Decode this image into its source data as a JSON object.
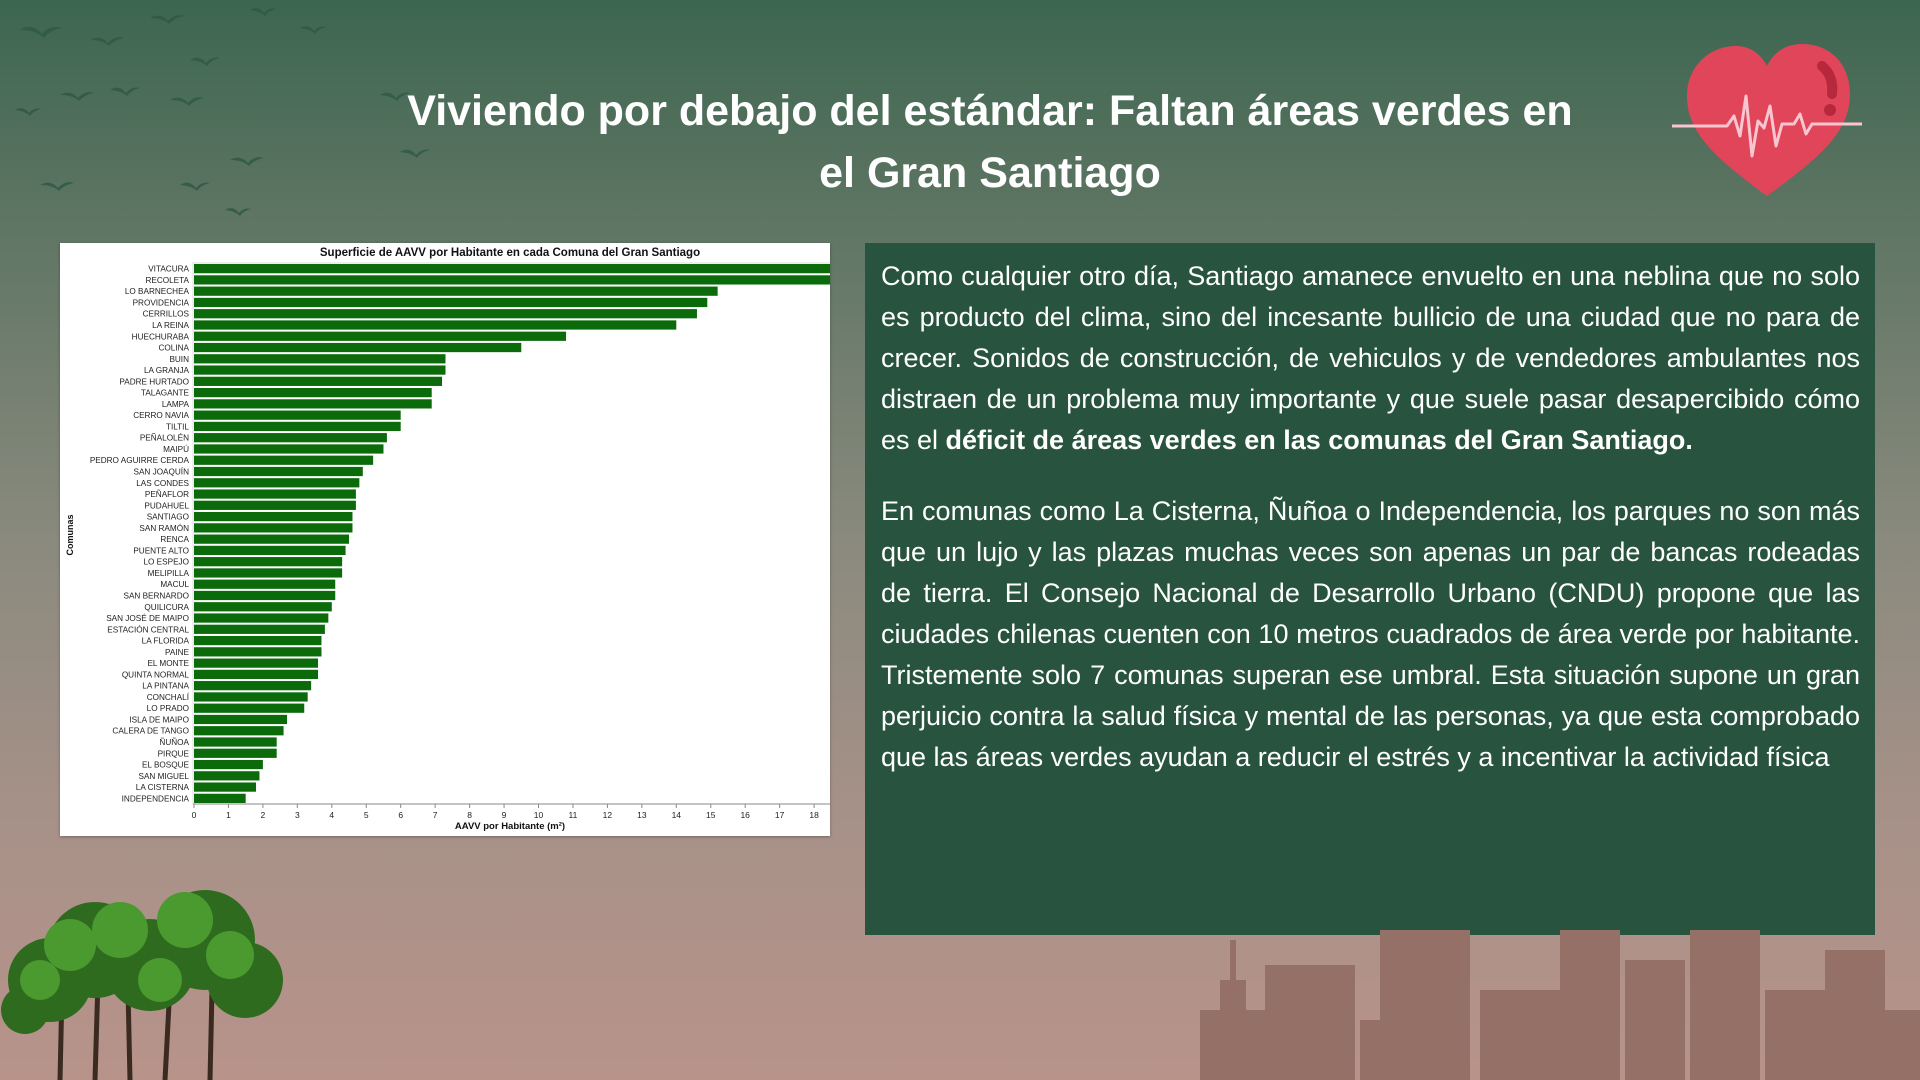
{
  "page": {
    "title_line1": "Viviendo por debajo del estándar: Faltan áreas verdes en",
    "title_line2": "el Gran Santiago"
  },
  "article": {
    "p1_text": "Como cualquier otro día, Santiago amanece envuelto en una neblina que no solo es producto del clima, sino del incesante bullicio de una ciudad que no para de crecer. Sonidos de construcción, de vehiculos y de vendedores ambulantes nos distraen de un problema muy importante y que suele pasar desapercibido cómo es el ",
    "p1_bold": "déficit de áreas verdes en las comunas del Gran Santiago.",
    "p2_text": "En comunas como La Cisterna, Ñuñoa o Independencia, los parques no son más que un lujo y las plazas muchas veces son apenas un par de bancas rodeadas de tierra. El Consejo Nacional de Desarrollo Urbano (CNDU) propone que las ciudades chilenas cuenten con 10 metros cuadrados de área verde por habitante. Tristemente solo 7 comunas superan ese umbral. Esta situación supone un gran perjuicio contra la salud física y mental de las personas, ya que esta comprobado que las áreas verdes ayudan a reducir el estrés y a incentivar la actividad física"
  },
  "decorations": {
    "heart_icon": "heart-with-heartbeat",
    "birds_icon": "flying-birds",
    "trees_icon": "trees",
    "skyline_icon": "city-skyline"
  },
  "colors": {
    "bar": "#0b6b0b",
    "text_card": "#27533f",
    "heart": "#e0455a"
  },
  "chart_data": {
    "type": "bar",
    "orientation": "horizontal",
    "title": "Superficie de AAVV por Habitante en cada Comuna del Gran Santiago",
    "xlabel": "AAVV por Habitante (m²)",
    "ylabel": "Comunas",
    "xlim": [
      0,
      20
    ],
    "xticks": [
      0,
      1,
      2,
      3,
      4,
      5,
      6,
      7,
      8,
      9,
      10,
      11,
      12,
      13,
      14,
      15,
      16,
      17,
      18,
      19,
      20
    ],
    "grid": false,
    "categories": [
      "VITACURA",
      "RECOLETA",
      "LO BARNECHEA",
      "PROVIDENCIA",
      "CERRILLOS",
      "LA REINA",
      "HUECHURABA",
      "COLINA",
      "BUIN",
      "LA GRANJA",
      "PADRE HURTADO",
      "TALAGANTE",
      "LAMPA",
      "CERRO NAVIA",
      "TILTIL",
      "PEÑALOLÉN",
      "MAIPÚ",
      "PEDRO AGUIRRE CERDA",
      "SAN JOAQUÍN",
      "LAS CONDES",
      "PEÑAFLOR",
      "PUDAHUEL",
      "SANTIAGO",
      "SAN RAMÓN",
      "RENCA",
      "PUENTE ALTO",
      "LO ESPEJO",
      "MELIPILLA",
      "MACUL",
      "SAN BERNARDO",
      "QUILICURA",
      "SAN JOSÉ DE MAIPO",
      "ESTACIÓN CENTRAL",
      "LA FLORIDA",
      "PAINE",
      "EL MONTE",
      "QUINTA NORMAL",
      "LA PINTANA",
      "CONCHALÍ",
      "LO PRADO",
      "ISLA DE MAIPO",
      "CALERA DE TANGO",
      "ÑUÑOA",
      "PIRQUE",
      "EL BOSQUE",
      "SAN MIGUEL",
      "LA CISTERNA",
      "INDEPENDENCIA"
    ],
    "values": [
      18.7,
      18.6,
      15.2,
      14.9,
      14.6,
      14.0,
      10.8,
      9.5,
      7.3,
      7.3,
      7.2,
      6.9,
      6.9,
      6.0,
      6.0,
      5.6,
      5.5,
      5.2,
      4.9,
      4.8,
      4.7,
      4.7,
      4.6,
      4.6,
      4.5,
      4.4,
      4.3,
      4.3,
      4.1,
      4.1,
      4.0,
      3.9,
      3.8,
      3.7,
      3.7,
      3.6,
      3.6,
      3.4,
      3.3,
      3.2,
      2.7,
      2.6,
      2.4,
      2.4,
      2.0,
      1.9,
      1.8,
      1.5
    ]
  }
}
